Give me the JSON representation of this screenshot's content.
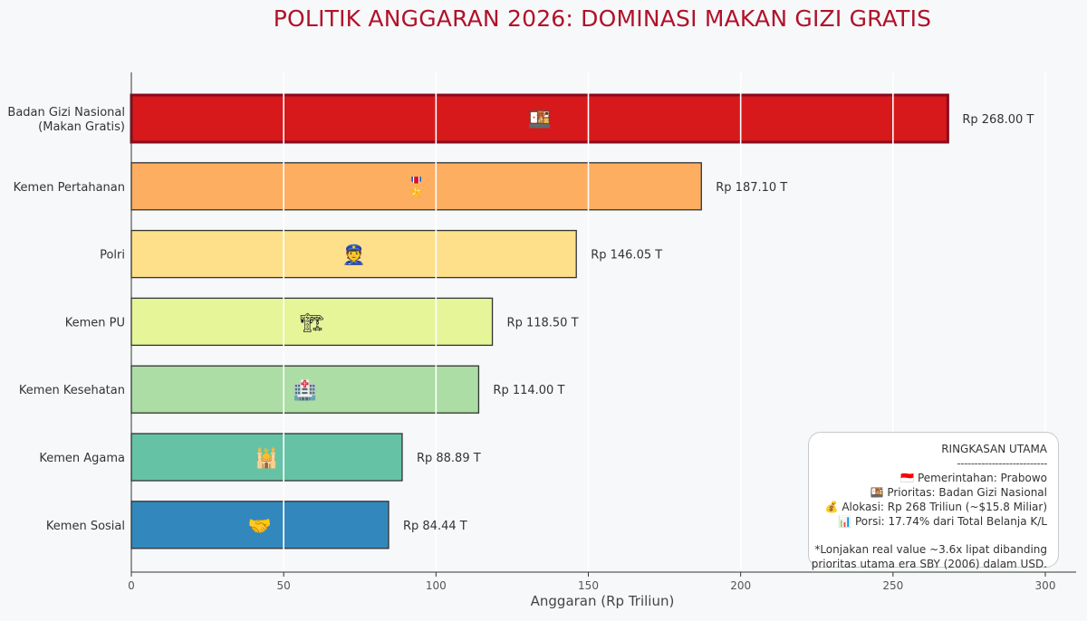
{
  "chart_data": {
    "type": "bar",
    "orientation": "horizontal",
    "title": "POLITIK ANGGARAN 2026: DOMINASI MAKAN GIZI GRATIS",
    "xlabel": "Anggaran (Rp Triliun)",
    "ylabel": "",
    "xlim": [
      0,
      310
    ],
    "xticks": [
      0,
      50,
      100,
      150,
      200,
      250,
      300
    ],
    "grid": "vertical",
    "categories": [
      [
        "Badan Gizi Nasional",
        "(Makan Gratis)"
      ],
      [
        "Kemen Pertahanan"
      ],
      [
        "Polri"
      ],
      [
        "Kemen PU"
      ],
      [
        "Kemen Kesehatan"
      ],
      [
        "Kemen Agama"
      ],
      [
        "Kemen Sosial"
      ]
    ],
    "values": [
      268.0,
      187.1,
      146.05,
      118.5,
      114.0,
      88.89,
      84.44
    ],
    "value_labels": [
      "Rp 268.00 T",
      "Rp 187.10 T",
      "Rp 146.05 T",
      "Rp 118.50 T",
      "Rp 114.00 T",
      "Rp 88.89 T",
      "Rp 84.44 T"
    ],
    "bar_icons": [
      "🍱",
      "🎖️",
      "👮",
      "🏗",
      "🏥",
      "🕌",
      "🤝"
    ],
    "bar_colors": [
      "#d7191c",
      "#fdae61",
      "#fee08b",
      "#e6f598",
      "#abdda4",
      "#66c2a5",
      "#3288bd"
    ],
    "highlight_index": 0,
    "highlight_edge_color": "#8b0a1e"
  },
  "summary": {
    "title": "RINGKASAN UTAMA",
    "separator": "--------------------------",
    "lines": [
      "🇮🇩 Pemerintahan: Prabowo",
      "🍱 Prioritas: Badan Gizi Nasional",
      "💰 Alokasi: Rp 268 Triliun (~$15.8 Miliar)",
      "📊 Porsi: 17.74% dari Total Belanja K/L"
    ],
    "note_lines": [
      "*Lonjakan real value ~3.6x lipat dibanding",
      "prioritas utama era SBY (2006) dalam USD."
    ]
  }
}
